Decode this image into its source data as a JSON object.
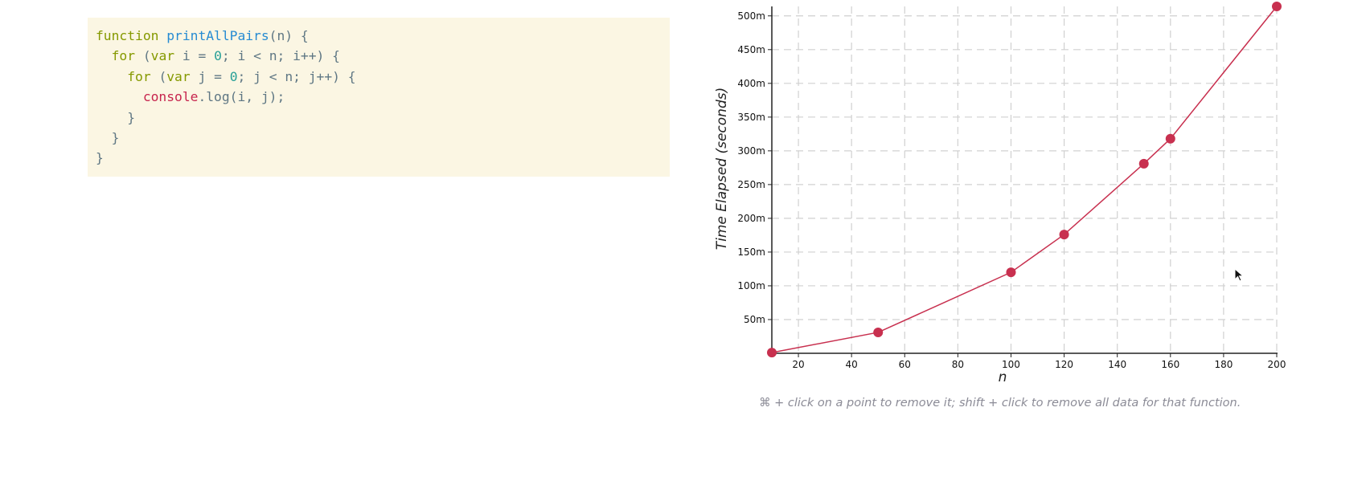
{
  "code": {
    "lines": [
      [
        {
          "t": "function",
          "c": "kw"
        },
        {
          "t": " "
        },
        {
          "t": "printAllPairs",
          "c": "fn"
        },
        {
          "t": "(n) {"
        }
      ],
      [
        {
          "t": "  "
        },
        {
          "t": "for",
          "c": "kw"
        },
        {
          "t": " ("
        },
        {
          "t": "var",
          "c": "kw"
        },
        {
          "t": " i = "
        },
        {
          "t": "0",
          "c": "num"
        },
        {
          "t": "; i < n; i++) {"
        }
      ],
      [
        {
          "t": "    "
        },
        {
          "t": "for",
          "c": "kw"
        },
        {
          "t": " ("
        },
        {
          "t": "var",
          "c": "kw"
        },
        {
          "t": " j = "
        },
        {
          "t": "0",
          "c": "num"
        },
        {
          "t": "; j < n; j++) {"
        }
      ],
      [
        {
          "t": "      "
        },
        {
          "t": "console",
          "c": "obj"
        },
        {
          "t": ".log(i, j);"
        }
      ],
      [
        {
          "t": "    }"
        }
      ],
      [
        {
          "t": "  }"
        }
      ],
      [
        {
          "t": "}"
        }
      ]
    ]
  },
  "chart_data": {
    "type": "line",
    "title": "",
    "xlabel": "n",
    "ylabel": "Time Elapsed (seconds)",
    "xlim": [
      10,
      200
    ],
    "ylim": [
      0,
      514
    ],
    "grid": true,
    "x_ticks": [
      20,
      40,
      60,
      80,
      100,
      120,
      140,
      160,
      180,
      200
    ],
    "y_ticks": [
      50,
      100,
      150,
      200,
      250,
      300,
      350,
      400,
      450,
      500
    ],
    "y_tick_labels": [
      "50m",
      "100m",
      "150m",
      "200m",
      "250m",
      "300m",
      "350m",
      "400m",
      "450m",
      "500m"
    ],
    "series": [
      {
        "color": "#c8304f",
        "x": [
          10,
          50,
          100,
          120,
          150,
          160,
          200
        ],
        "y": [
          1,
          31,
          120,
          176,
          281,
          318,
          514
        ]
      }
    ]
  },
  "hint": "⌘ + click on a point to remove it; shift + click to remove all data for that function."
}
